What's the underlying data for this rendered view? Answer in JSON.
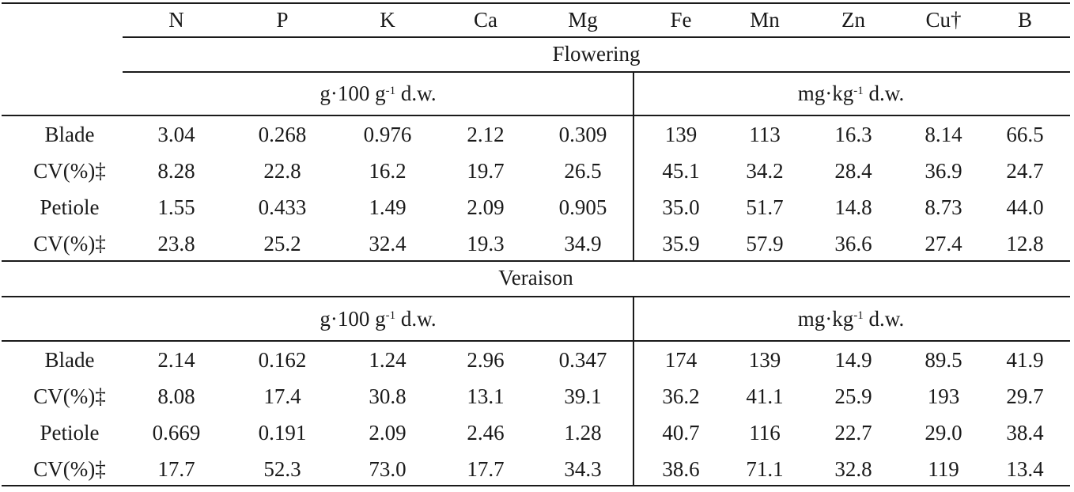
{
  "columns": [
    "N",
    "P",
    "K",
    "Ca",
    "Mg",
    "Fe",
    "Mn",
    "Zn",
    "Cu†",
    "B"
  ],
  "sections": [
    {
      "stage": "Flowering",
      "unit_macro": {
        "base": "g·100 g",
        "exp": "-1",
        "suffix": " d.w."
      },
      "unit_micro": {
        "base": "mg·kg",
        "exp": "-1",
        "suffix": " d.w."
      },
      "rows": [
        {
          "label": "Blade",
          "values": [
            "3.04",
            "0.268",
            "0.976",
            "2.12",
            "0.309",
            "139",
            "113",
            "16.3",
            "8.14",
            "66.5"
          ]
        },
        {
          "label": "CV(%)‡",
          "values": [
            "8.28",
            "22.8",
            "16.2",
            "19.7",
            "26.5",
            "45.1",
            "34.2",
            "28.4",
            "36.9",
            "24.7"
          ]
        },
        {
          "label": "Petiole",
          "values": [
            "1.55",
            "0.433",
            "1.49",
            "2.09",
            "0.905",
            "35.0",
            "51.7",
            "14.8",
            "8.73",
            "44.0"
          ]
        },
        {
          "label": "CV(%)‡",
          "values": [
            "23.8",
            "25.2",
            "32.4",
            "19.3",
            "34.9",
            "35.9",
            "57.9",
            "36.6",
            "27.4",
            "12.8"
          ]
        }
      ]
    },
    {
      "stage": "Veraison",
      "unit_macro": {
        "base": "g·100 g",
        "exp": "-1",
        "suffix": " d.w."
      },
      "unit_micro": {
        "base": "mg·kg",
        "exp": "-1",
        "suffix": " d.w."
      },
      "rows": [
        {
          "label": "Blade",
          "values": [
            "2.14",
            "0.162",
            "1.24",
            "2.96",
            "0.347",
            "174",
            "139",
            "14.9",
            "89.5",
            "41.9"
          ]
        },
        {
          "label": "CV(%)‡",
          "values": [
            "8.08",
            "17.4",
            "30.8",
            "13.1",
            "39.1",
            "36.2",
            "41.1",
            "25.9",
            "193",
            "29.7"
          ]
        },
        {
          "label": "Petiole",
          "values": [
            "0.669",
            "0.191",
            "2.09",
            "2.46",
            "1.28",
            "40.7",
            "116",
            "22.7",
            "29.0",
            "38.4"
          ]
        },
        {
          "label": "CV(%)‡",
          "values": [
            "17.7",
            "52.3",
            "73.0",
            "17.7",
            "34.3",
            "38.6",
            "71.1",
            "32.8",
            "119",
            "13.4"
          ]
        }
      ]
    }
  ]
}
